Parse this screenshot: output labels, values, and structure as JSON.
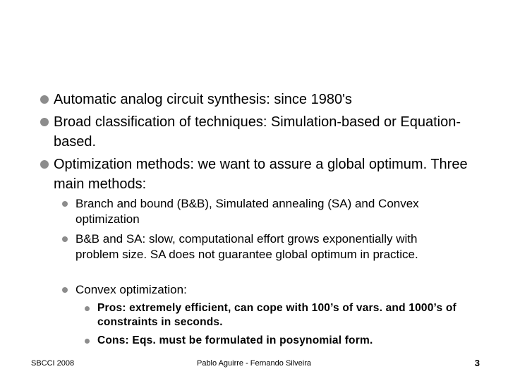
{
  "slide": {
    "bullets": [
      {
        "text": "Automatic analog circuit synthesis: since 1980's"
      },
      {
        "text": "Broad classification of techniques: Simulation-based or Equation-based."
      },
      {
        "text": "Optimization methods: we want to assure a global optimum. Three main methods:",
        "sub": [
          {
            "text": "Branch and bound (B&B), Simulated annealing (SA) and Convex optimization"
          },
          {
            "text": "B&B and SA: slow, computational effort grows exponentially with problem size. SA does not guarantee global optimum in practice."
          },
          {
            "text": "Convex optimization:",
            "sub": [
              {
                "text": "Pros: extremely efficient, can cope with 100’s of vars. and 1000’s of constraints in seconds."
              },
              {
                "text": "Cons: Eqs. must be formulated in posynomial form."
              }
            ]
          }
        ]
      }
    ]
  },
  "footer": {
    "left": "SBCCI 2008",
    "center": "Pablo Aguirre - Fernando Silveira",
    "page": "3"
  }
}
